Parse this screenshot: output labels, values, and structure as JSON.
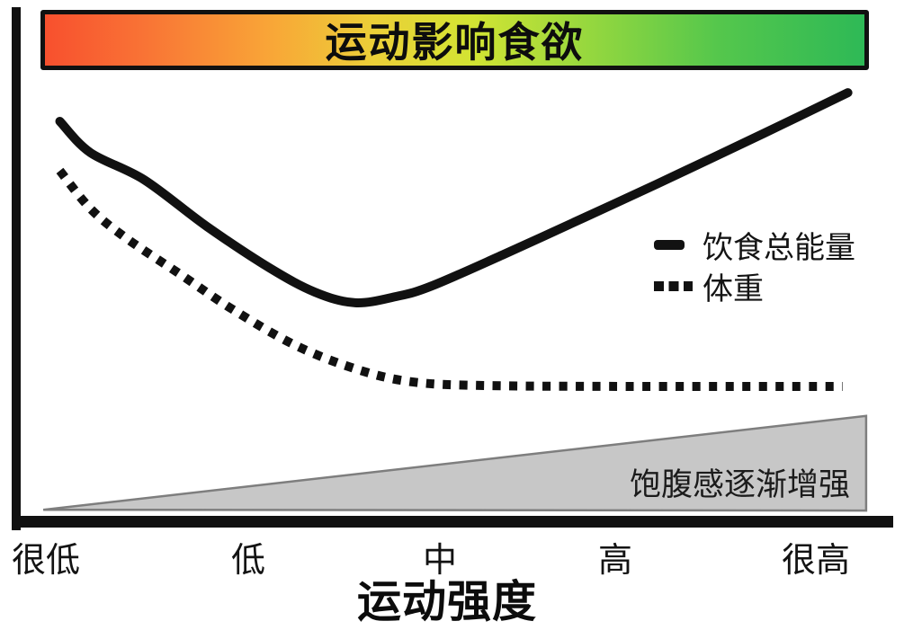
{
  "page": {
    "background": "#ffffff"
  },
  "header": {
    "title": "运动影响食欲",
    "gradient_stops": [
      [
        "#f8502e",
        0
      ],
      [
        "#f97335",
        12
      ],
      [
        "#f9a437",
        27
      ],
      [
        "#eccf38",
        40
      ],
      [
        "#d3e433",
        52
      ],
      [
        "#97d83e",
        66
      ],
      [
        "#55c74c",
        82
      ],
      [
        "#2eb956",
        100
      ]
    ],
    "border_color": "#111111"
  },
  "colors": {
    "line": "#111111",
    "axis": "#111111",
    "triangle_fill": "#c7c7c7",
    "triangle_stroke": "#7e7e7e"
  },
  "chart_data": {
    "type": "line",
    "title": "运动影响食欲",
    "xlabel": "运动强度",
    "ylabel": "",
    "x_tick_labels": [
      "很低",
      "低",
      "中",
      "高",
      "很高"
    ],
    "y_axis_ticks_visible": false,
    "grid": false,
    "legend_position": "right-middle",
    "series": [
      {
        "name": "饮食总能量",
        "style": "solid",
        "shape": "u-curve: decreases from very-low intensity, minimum near middle-low intensity, then rises steadily to very high",
        "points_pct": [
          [
            4.6,
            89.8
          ],
          [
            8.1,
            82.7
          ],
          [
            14.3,
            76.5
          ],
          [
            21.5,
            65.9
          ],
          [
            28.7,
            56.5
          ],
          [
            33.9,
            51.0
          ],
          [
            38.5,
            48.6
          ],
          [
            43.2,
            50.0
          ],
          [
            47.3,
            52.4
          ],
          [
            55.6,
            59.6
          ],
          [
            64.9,
            68.0
          ],
          [
            73.1,
            75.5
          ],
          [
            85.5,
            87.1
          ],
          [
            95.1,
            96.3
          ]
        ]
      },
      {
        "name": "体重",
        "style": "dotted",
        "shape": "decreases from very-low intensity then plateaus flat from middle intensity onward",
        "points_pct": [
          [
            4.6,
            78.6
          ],
          [
            8.1,
            70.0
          ],
          [
            12.2,
            63.3
          ],
          [
            18.4,
            55.1
          ],
          [
            24.6,
            46.9
          ],
          [
            31.8,
            38.8
          ],
          [
            39.0,
            33.3
          ],
          [
            45.2,
            30.6
          ],
          [
            53.5,
            29.8
          ],
          [
            70.0,
            29.6
          ],
          [
            94.5,
            29.6
          ]
        ]
      }
    ],
    "annotation": {
      "label": "饱腹感逐渐增强",
      "shape": "right-triangle ramp rising left-to-right along the x axis",
      "points_pct": [
        [
          2.7,
          1.6
        ],
        [
          97.2,
          22.9
        ],
        [
          97.2,
          1.4
        ]
      ]
    }
  }
}
